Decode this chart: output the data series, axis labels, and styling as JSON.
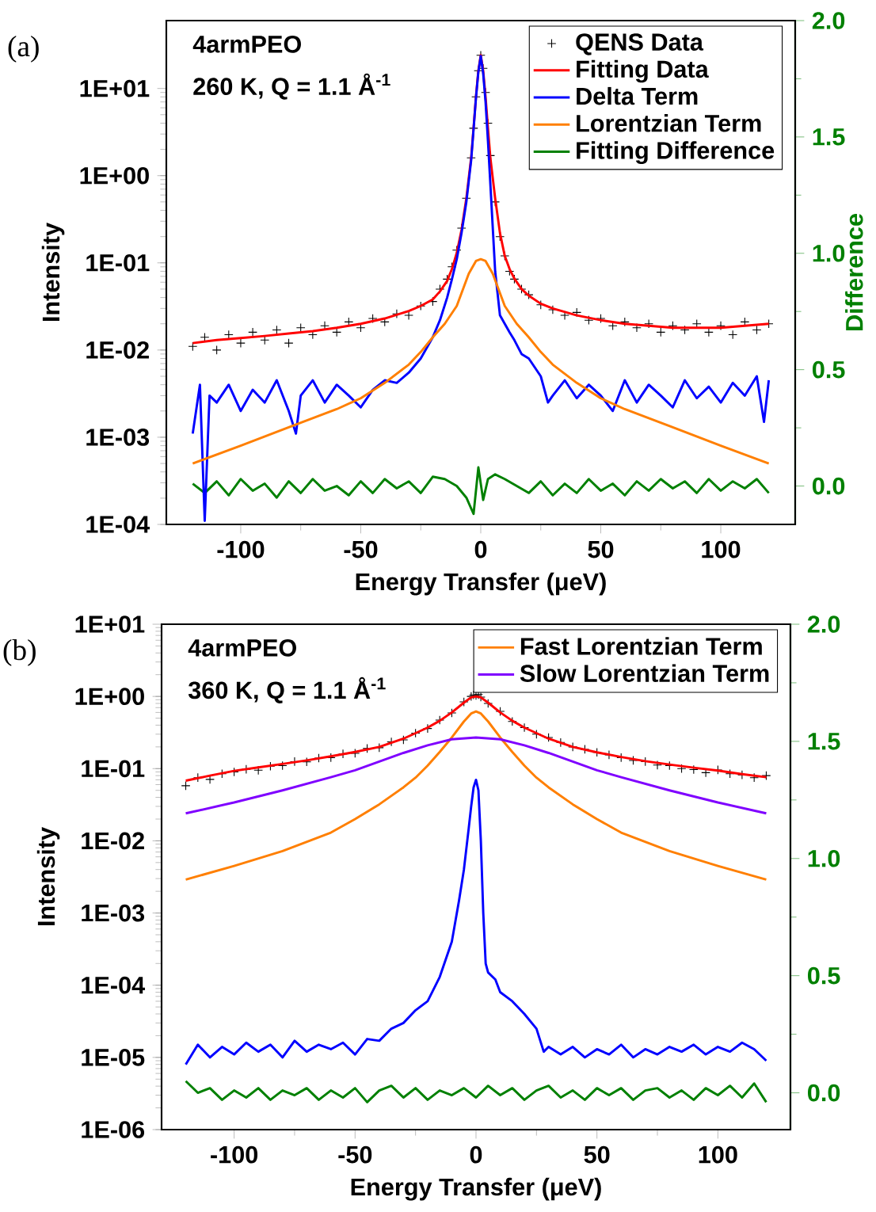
{
  "chart_data": [
    {
      "type": "line",
      "xlabel": "Energy Transfer (μeV)",
      "ylabel": "Intensity",
      "y2label": "Difference",
      "log": "y",
      "legend": "top right",
      "annotations": [
        "(a)",
        "4armPEO",
        "260 K, Q = 1.1 Å$^{-1}$"
      ],
      "xlim": [
        -131,
        131
      ],
      "xticks": [
        -100,
        -50,
        0,
        50,
        100
      ],
      "ylim": [
        0.0001,
        60
      ],
      "yticks": [
        {
          "value": 0.0001,
          "label": "1E-04"
        },
        {
          "value": 0.001,
          "label": "1E-03"
        },
        {
          "value": 0.01,
          "label": "1E-02"
        },
        {
          "value": 0.1,
          "label": "1E-01"
        },
        {
          "value": 1,
          "label": "1E+00"
        },
        {
          "value": 10,
          "label": "1E+01"
        }
      ],
      "y2lim": [
        -0.165,
        2.0
      ],
      "y2ticks": [
        {
          "value": 0,
          "label": "0.0"
        },
        {
          "value": 0.5,
          "label": "0.5"
        },
        {
          "value": 1,
          "label": "1.0"
        },
        {
          "value": 1.5,
          "label": "1.5"
        },
        {
          "value": 2,
          "label": "2.0"
        }
      ],
      "series": [
        {
          "name": "QENS Data",
          "type": "scatter",
          "marker": "cross",
          "color": "#000000",
          "x": [
            -120,
            -115,
            -110,
            -105,
            -100,
            -95,
            -90,
            -85,
            -80,
            -75,
            -70,
            -65,
            -60,
            -55,
            -50,
            -45,
            -40,
            -35,
            -30,
            -25,
            -20,
            -17,
            -14,
            -12,
            -10,
            -8,
            -6,
            -4,
            -3,
            -2,
            -1,
            0,
            1,
            2,
            3,
            4,
            6,
            8,
            10,
            12,
            14,
            17,
            20,
            25,
            30,
            35,
            40,
            45,
            50,
            55,
            60,
            65,
            70,
            75,
            80,
            85,
            90,
            95,
            100,
            105,
            110,
            115,
            120
          ],
          "values": [
            0.011,
            0.014,
            0.01,
            0.015,
            0.012,
            0.016,
            0.013,
            0.017,
            0.012,
            0.018,
            0.015,
            0.019,
            0.016,
            0.021,
            0.018,
            0.023,
            0.021,
            0.026,
            0.025,
            0.032,
            0.036,
            0.05,
            0.065,
            0.09,
            0.14,
            0.25,
            0.55,
            1.6,
            3.5,
            8,
            16,
            24,
            17,
            9,
            4,
            1.7,
            0.5,
            0.2,
            0.12,
            0.08,
            0.065,
            0.05,
            0.043,
            0.033,
            0.029,
            0.025,
            0.027,
            0.022,
            0.023,
            0.019,
            0.021,
            0.018,
            0.02,
            0.016,
            0.019,
            0.017,
            0.02,
            0.016,
            0.019,
            0.015,
            0.021,
            0.017,
            0.02
          ]
        },
        {
          "name": "Fitting Data",
          "color": "#ff0000",
          "x": [
            -120,
            -110,
            -100,
            -90,
            -80,
            -70,
            -60,
            -50,
            -40,
            -30,
            -25,
            -20,
            -17,
            -14,
            -12,
            -10,
            -8,
            -6,
            -4,
            -3,
            -2,
            -1,
            0,
            1,
            2,
            3,
            4,
            6,
            8,
            10,
            12,
            14,
            17,
            20,
            25,
            30,
            40,
            50,
            60,
            70,
            80,
            90,
            100,
            110,
            120
          ],
          "values": [
            0.012,
            0.013,
            0.0137,
            0.0145,
            0.0155,
            0.0165,
            0.018,
            0.02,
            0.023,
            0.028,
            0.032,
            0.038,
            0.047,
            0.062,
            0.085,
            0.13,
            0.24,
            0.55,
            1.6,
            3.5,
            8,
            16,
            24,
            16,
            8,
            3.5,
            1.6,
            0.55,
            0.22,
            0.12,
            0.085,
            0.066,
            0.05,
            0.042,
            0.034,
            0.03,
            0.025,
            0.022,
            0.02,
            0.019,
            0.018,
            0.018,
            0.018,
            0.019,
            0.02
          ]
        },
        {
          "name": "Delta Term",
          "color": "#0000ff",
          "x": [
            -120,
            -117,
            -115,
            -113,
            -110,
            -105,
            -100,
            -95,
            -90,
            -85,
            -80,
            -77,
            -75,
            -70,
            -65,
            -60,
            -55,
            -50,
            -45,
            -40,
            -35,
            -30,
            -25,
            -20,
            -17,
            -14,
            -12,
            -10,
            -8,
            -6,
            -4,
            -3,
            -2,
            -1,
            0,
            1,
            2,
            3,
            4,
            6,
            8,
            10,
            12,
            14,
            17,
            20,
            25,
            28,
            30,
            35,
            40,
            45,
            50,
            55,
            60,
            65,
            70,
            75,
            80,
            85,
            90,
            95,
            100,
            105,
            110,
            115,
            118,
            120
          ],
          "values": [
            0.0011,
            0.004,
            0.00011,
            0.003,
            0.0025,
            0.004,
            0.002,
            0.0035,
            0.0025,
            0.0045,
            0.002,
            0.0011,
            0.003,
            0.0045,
            0.0025,
            0.004,
            0.003,
            0.0022,
            0.0035,
            0.0045,
            0.0042,
            0.0055,
            0.008,
            0.014,
            0.022,
            0.04,
            0.065,
            0.11,
            0.22,
            0.5,
            1.5,
            3.4,
            7.8,
            15.5,
            23.5,
            15,
            7,
            2.5,
            0.8,
            0.08,
            0.025,
            0.02,
            0.016,
            0.013,
            0.009,
            0.008,
            0.005,
            0.0025,
            0.003,
            0.0045,
            0.0028,
            0.004,
            0.003,
            0.002,
            0.0045,
            0.0025,
            0.004,
            0.003,
            0.0022,
            0.0045,
            0.0028,
            0.0038,
            0.0025,
            0.0042,
            0.003,
            0.005,
            0.0015,
            0.0045
          ]
        },
        {
          "name": "Lorentzian Term",
          "color": "#ff7f00",
          "x": [
            -120,
            -100,
            -80,
            -60,
            -50,
            -40,
            -30,
            -25,
            -20,
            -15,
            -10,
            -5,
            -2,
            0,
            2,
            5,
            10,
            15,
            20,
            25,
            30,
            40,
            50,
            60,
            80,
            100,
            120
          ],
          "values": [
            0.0005,
            0.0008,
            0.0013,
            0.0021,
            0.0028,
            0.0042,
            0.0068,
            0.0095,
            0.014,
            0.02,
            0.032,
            0.075,
            0.105,
            0.11,
            0.105,
            0.075,
            0.032,
            0.02,
            0.014,
            0.0095,
            0.0068,
            0.0042,
            0.0028,
            0.0021,
            0.0013,
            0.0008,
            0.0005
          ]
        },
        {
          "name": "Fitting Difference",
          "axis": "y2",
          "color": "#008000",
          "x": [
            -120,
            -115,
            -110,
            -105,
            -100,
            -95,
            -90,
            -85,
            -80,
            -75,
            -70,
            -65,
            -60,
            -55,
            -50,
            -45,
            -40,
            -35,
            -30,
            -25,
            -20,
            -15,
            -10,
            -6,
            -3,
            -1,
            1,
            3,
            6,
            10,
            15,
            20,
            25,
            30,
            35,
            40,
            45,
            50,
            55,
            60,
            65,
            70,
            75,
            80,
            85,
            90,
            95,
            100,
            105,
            110,
            115,
            120
          ],
          "values": [
            0.01,
            -0.03,
            0.02,
            -0.04,
            0.03,
            -0.02,
            0.01,
            -0.05,
            0.02,
            -0.03,
            0.03,
            -0.02,
            0.0,
            -0.04,
            0.02,
            -0.03,
            0.03,
            -0.01,
            0.02,
            -0.03,
            0.04,
            0.03,
            0.0,
            -0.05,
            -0.12,
            0.08,
            -0.06,
            0.03,
            0.05,
            0.03,
            0.0,
            -0.03,
            0.02,
            -0.04,
            0.01,
            -0.03,
            0.03,
            -0.02,
            0.01,
            -0.04,
            0.02,
            -0.02,
            0.03,
            -0.01,
            0.02,
            -0.03,
            0.03,
            -0.02,
            0.02,
            -0.01,
            0.03,
            -0.03
          ]
        }
      ]
    },
    {
      "type": "line",
      "xlabel": "Energy Transfer (μeV)",
      "ylabel": "Intensity",
      "log": "y",
      "legend": "top right",
      "annotations": [
        "(b)",
        "4armPEO",
        "360 K, Q = 1.1 Å$^{-1}$"
      ],
      "xlim": [
        -130,
        130
      ],
      "xticks": [
        -100,
        -50,
        0,
        50,
        100
      ],
      "ylim": [
        1e-06,
        10
      ],
      "yticks": [
        {
          "value": 1e-06,
          "label": "1E-06"
        },
        {
          "value": 1e-05,
          "label": "1E-05"
        },
        {
          "value": 0.0001,
          "label": "1E-04"
        },
        {
          "value": 0.001,
          "label": "1E-03"
        },
        {
          "value": 0.01,
          "label": "1E-02"
        },
        {
          "value": 0.1,
          "label": "1E-01"
        },
        {
          "value": 1,
          "label": "1E+00"
        },
        {
          "value": 10,
          "label": "1E+01"
        }
      ],
      "y2lim": [
        -0.157,
        2.0
      ],
      "y2ticks": [
        {
          "value": 0,
          "label": "0.0"
        },
        {
          "value": 0.5,
          "label": "0.5"
        },
        {
          "value": 1,
          "label": "1.0"
        },
        {
          "value": 1.5,
          "label": "1.5"
        },
        {
          "value": 2,
          "label": "2.0"
        }
      ],
      "series": [
        {
          "type": "scatter",
          "marker": "cross",
          "color": "#000000",
          "x": [
            -120,
            -115,
            -110,
            -105,
            -100,
            -95,
            -90,
            -85,
            -80,
            -75,
            -70,
            -65,
            -60,
            -55,
            -50,
            -45,
            -40,
            -35,
            -30,
            -25,
            -20,
            -15,
            -10,
            -5,
            -2,
            -1,
            0,
            1,
            2,
            5,
            10,
            15,
            20,
            25,
            30,
            35,
            40,
            45,
            50,
            55,
            60,
            65,
            70,
            75,
            80,
            85,
            90,
            95,
            100,
            105,
            110,
            115,
            120
          ],
          "values": [
            0.058,
            0.075,
            0.071,
            0.085,
            0.09,
            0.098,
            0.095,
            0.108,
            0.11,
            0.125,
            0.124,
            0.14,
            0.142,
            0.16,
            0.163,
            0.19,
            0.195,
            0.235,
            0.25,
            0.31,
            0.36,
            0.47,
            0.59,
            0.84,
            1.0,
            1.05,
            1.03,
            1.06,
            0.98,
            0.8,
            0.62,
            0.45,
            0.37,
            0.3,
            0.27,
            0.23,
            0.2,
            0.185,
            0.168,
            0.155,
            0.142,
            0.13,
            0.125,
            0.112,
            0.11,
            0.1,
            0.097,
            0.088,
            0.096,
            0.085,
            0.082,
            0.075,
            0.08
          ]
        },
        {
          "color": "#ff0000",
          "x": [
            -120,
            -110,
            -100,
            -90,
            -80,
            -70,
            -60,
            -50,
            -40,
            -30,
            -20,
            -15,
            -10,
            -5,
            -2,
            0,
            2,
            5,
            10,
            15,
            20,
            30,
            40,
            50,
            60,
            70,
            80,
            90,
            100,
            110,
            120
          ],
          "values": [
            0.068,
            0.08,
            0.093,
            0.104,
            0.116,
            0.13,
            0.148,
            0.17,
            0.2,
            0.26,
            0.37,
            0.46,
            0.6,
            0.82,
            0.97,
            1.0,
            0.97,
            0.82,
            0.6,
            0.46,
            0.37,
            0.26,
            0.2,
            0.168,
            0.145,
            0.127,
            0.114,
            0.103,
            0.094,
            0.084,
            0.076
          ]
        },
        {
          "name": "Fast Lorentzian Term",
          "color": "#ff7f00",
          "x": [
            -120,
            -100,
            -80,
            -60,
            -50,
            -40,
            -30,
            -25,
            -20,
            -15,
            -10,
            -5,
            -2,
            0,
            2,
            5,
            10,
            15,
            20,
            25,
            30,
            40,
            50,
            60,
            80,
            100,
            120
          ],
          "values": [
            0.0029,
            0.0045,
            0.0072,
            0.013,
            0.02,
            0.032,
            0.055,
            0.075,
            0.11,
            0.17,
            0.27,
            0.45,
            0.58,
            0.62,
            0.58,
            0.45,
            0.27,
            0.17,
            0.11,
            0.075,
            0.055,
            0.032,
            0.02,
            0.013,
            0.0072,
            0.0045,
            0.0029
          ]
        },
        {
          "name": "Slow Lorentzian Term",
          "color": "#7f00ff",
          "x": [
            -120,
            -100,
            -80,
            -60,
            -50,
            -40,
            -30,
            -20,
            -10,
            0,
            10,
            20,
            30,
            40,
            50,
            60,
            80,
            100,
            120
          ],
          "values": [
            0.024,
            0.034,
            0.05,
            0.076,
            0.095,
            0.125,
            0.165,
            0.21,
            0.255,
            0.27,
            0.255,
            0.21,
            0.165,
            0.125,
            0.095,
            0.076,
            0.05,
            0.034,
            0.024
          ]
        },
        {
          "color": "#0000ff",
          "x": [
            -120,
            -115,
            -110,
            -105,
            -100,
            -95,
            -90,
            -85,
            -80,
            -75,
            -70,
            -65,
            -60,
            -55,
            -50,
            -45,
            -40,
            -35,
            -30,
            -25,
            -20,
            -15,
            -10,
            -7,
            -5,
            -3,
            -2,
            -1,
            0,
            1,
            2,
            3,
            4,
            5,
            8,
            10,
            15,
            20,
            25,
            28,
            30,
            35,
            40,
            45,
            50,
            55,
            60,
            65,
            70,
            75,
            80,
            85,
            90,
            95,
            100,
            105,
            110,
            115,
            120
          ],
          "values": [
            8e-06,
            1.5e-05,
            1e-05,
            1.4e-05,
            1.1e-05,
            1.6e-05,
            1.2e-05,
            1.5e-05,
            1e-05,
            1.7e-05,
            1.2e-05,
            1.5e-05,
            1.3e-05,
            1.6e-05,
            1.1e-05,
            1.8e-05,
            1.7e-05,
            2.5e-05,
            3e-05,
            4.5e-05,
            6e-05,
            0.00013,
            0.0004,
            0.0015,
            0.004,
            0.015,
            0.03,
            0.055,
            0.07,
            0.05,
            0.01,
            0.001,
            0.0002,
            0.00015,
            0.00012,
            8e-05,
            6e-05,
            4e-05,
            2.5e-05,
            1.2e-05,
            1.4e-05,
            1.1e-05,
            1.4e-05,
            1e-05,
            1.3e-05,
            1.1e-05,
            1.5e-05,
            1e-05,
            1.3e-05,
            1.1e-05,
            1.4e-05,
            1.2e-05,
            1.5e-05,
            1.1e-05,
            1.4e-05,
            1.2e-05,
            1.6e-05,
            1.3e-05,
            9e-06
          ]
        },
        {
          "axis": "y2",
          "color": "#008000",
          "x": [
            -120,
            -115,
            -110,
            -105,
            -100,
            -95,
            -90,
            -85,
            -80,
            -75,
            -70,
            -65,
            -60,
            -55,
            -50,
            -45,
            -40,
            -35,
            -30,
            -25,
            -20,
            -15,
            -10,
            -5,
            0,
            5,
            10,
            15,
            20,
            25,
            30,
            35,
            40,
            45,
            50,
            55,
            60,
            65,
            70,
            75,
            80,
            85,
            90,
            95,
            100,
            105,
            110,
            115,
            120
          ],
          "values": [
            0.05,
            0.0,
            0.02,
            -0.03,
            0.01,
            -0.02,
            0.02,
            -0.03,
            0.01,
            -0.01,
            0.02,
            -0.03,
            0.01,
            -0.02,
            0.02,
            -0.04,
            0.01,
            0.03,
            -0.02,
            0.02,
            -0.03,
            0.01,
            -0.01,
            0.02,
            -0.02,
            0.03,
            -0.01,
            0.02,
            -0.03,
            0.01,
            0.03,
            -0.02,
            0.01,
            -0.03,
            0.02,
            -0.01,
            0.02,
            -0.03,
            0.01,
            0.02,
            -0.02,
            0.01,
            -0.03,
            0.02,
            -0.01,
            0.03,
            -0.02,
            0.04,
            -0.04
          ]
        }
      ]
    }
  ]
}
